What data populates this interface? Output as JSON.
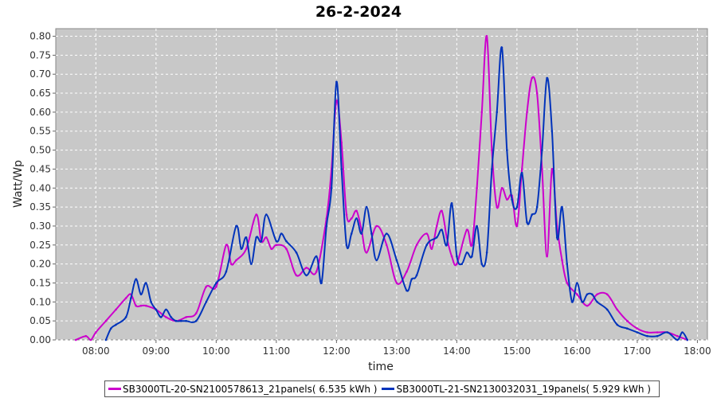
{
  "chart_data": {
    "type": "line",
    "title": "26-2-2024",
    "xlabel": "time",
    "ylabel": "Watt/Wp",
    "xlim": [
      "07:20",
      "18:10"
    ],
    "ylim": [
      0,
      0.82
    ],
    "x_ticks": [
      "08:00",
      "09:00",
      "10:00",
      "11:00",
      "12:00",
      "13:00",
      "14:00",
      "15:00",
      "16:00",
      "17:00",
      "18:00"
    ],
    "y_ticks": [
      "0.00",
      "0.05",
      "0.10",
      "0.15",
      "0.20",
      "0.25",
      "0.30",
      "0.35",
      "0.40",
      "0.45",
      "0.50",
      "0.55",
      "0.60",
      "0.65",
      "0.70",
      "0.75",
      "0.80"
    ],
    "grid": true,
    "legend_position": "bottom",
    "background_color": "#c8c8c8",
    "series": [
      {
        "name": "SB3000TL-20-SN2100578613_21panels( 6.535 kWh )",
        "color": "#cc00cc",
        "x": [
          "07:40",
          "07:50",
          "07:55",
          "08:00",
          "08:10",
          "08:20",
          "08:30",
          "08:35",
          "08:40",
          "08:45",
          "08:50",
          "09:00",
          "09:10",
          "09:20",
          "09:30",
          "09:40",
          "09:50",
          "10:00",
          "10:10",
          "10:15",
          "10:20",
          "10:30",
          "10:40",
          "10:45",
          "10:50",
          "10:55",
          "11:00",
          "11:10",
          "11:20",
          "11:30",
          "11:40",
          "11:50",
          "11:55",
          "12:00",
          "12:05",
          "12:10",
          "12:15",
          "12:20",
          "12:25",
          "12:30",
          "12:40",
          "12:50",
          "13:00",
          "13:10",
          "13:20",
          "13:30",
          "13:35",
          "13:40",
          "13:45",
          "13:50",
          "13:55",
          "14:00",
          "14:10",
          "14:15",
          "14:20",
          "14:25",
          "14:30",
          "14:35",
          "14:40",
          "14:45",
          "14:50",
          "14:55",
          "15:00",
          "15:05",
          "15:10",
          "15:15",
          "15:20",
          "15:25",
          "15:30",
          "15:35",
          "15:40",
          "15:45",
          "15:50",
          "16:00",
          "16:10",
          "16:20",
          "16:30",
          "16:40",
          "16:50",
          "17:00",
          "17:10",
          "17:20",
          "17:30",
          "17:40",
          "17:50"
        ],
        "y": [
          0.0,
          0.01,
          0.0,
          0.02,
          0.05,
          0.08,
          0.11,
          0.12,
          0.09,
          0.09,
          0.09,
          0.08,
          0.06,
          0.05,
          0.06,
          0.07,
          0.14,
          0.14,
          0.25,
          0.2,
          0.21,
          0.24,
          0.33,
          0.26,
          0.27,
          0.24,
          0.25,
          0.24,
          0.17,
          0.19,
          0.18,
          0.32,
          0.45,
          0.63,
          0.52,
          0.33,
          0.32,
          0.34,
          0.29,
          0.23,
          0.3,
          0.25,
          0.15,
          0.18,
          0.25,
          0.28,
          0.24,
          0.3,
          0.34,
          0.27,
          0.22,
          0.2,
          0.29,
          0.25,
          0.4,
          0.6,
          0.8,
          0.5,
          0.35,
          0.4,
          0.37,
          0.38,
          0.3,
          0.45,
          0.6,
          0.69,
          0.65,
          0.45,
          0.22,
          0.45,
          0.3,
          0.21,
          0.15,
          0.12,
          0.09,
          0.12,
          0.12,
          0.08,
          0.05,
          0.03,
          0.02,
          0.02,
          0.02,
          0.01,
          0.0
        ]
      },
      {
        "name": "SB3000TL-21-SN2130032031_19panels( 5.929 kWh )",
        "color": "#0033bb",
        "x": [
          "08:10",
          "08:15",
          "08:20",
          "08:30",
          "08:35",
          "08:40",
          "08:45",
          "08:50",
          "08:55",
          "09:00",
          "09:05",
          "09:10",
          "09:15",
          "09:20",
          "09:25",
          "09:30",
          "09:40",
          "09:50",
          "10:00",
          "10:10",
          "10:20",
          "10:25",
          "10:30",
          "10:35",
          "10:40",
          "10:45",
          "10:50",
          "11:00",
          "11:05",
          "11:10",
          "11:20",
          "11:30",
          "11:40",
          "11:45",
          "11:50",
          "11:55",
          "12:00",
          "12:05",
          "12:10",
          "12:15",
          "12:20",
          "12:25",
          "12:30",
          "12:35",
          "12:40",
          "12:50",
          "13:00",
          "13:10",
          "13:15",
          "13:20",
          "13:30",
          "13:40",
          "13:45",
          "13:50",
          "13:55",
          "14:00",
          "14:05",
          "14:10",
          "14:15",
          "14:20",
          "14:25",
          "14:30",
          "14:35",
          "14:40",
          "14:45",
          "14:50",
          "14:55",
          "15:00",
          "15:05",
          "15:10",
          "15:15",
          "15:20",
          "15:25",
          "15:30",
          "15:35",
          "15:40",
          "15:45",
          "15:50",
          "15:55",
          "16:00",
          "16:05",
          "16:10",
          "16:15",
          "16:20",
          "16:30",
          "16:40",
          "16:50",
          "17:00",
          "17:10",
          "17:20",
          "17:30",
          "17:40",
          "17:45",
          "17:50"
        ],
        "y": [
          0.0,
          0.03,
          0.04,
          0.06,
          0.11,
          0.16,
          0.12,
          0.15,
          0.1,
          0.08,
          0.06,
          0.08,
          0.06,
          0.05,
          0.05,
          0.05,
          0.05,
          0.1,
          0.15,
          0.18,
          0.3,
          0.24,
          0.27,
          0.2,
          0.27,
          0.26,
          0.33,
          0.26,
          0.28,
          0.26,
          0.23,
          0.17,
          0.22,
          0.15,
          0.3,
          0.4,
          0.68,
          0.45,
          0.25,
          0.28,
          0.32,
          0.28,
          0.35,
          0.28,
          0.21,
          0.28,
          0.21,
          0.13,
          0.16,
          0.17,
          0.25,
          0.27,
          0.29,
          0.25,
          0.36,
          0.22,
          0.2,
          0.23,
          0.22,
          0.3,
          0.2,
          0.23,
          0.45,
          0.6,
          0.77,
          0.5,
          0.37,
          0.35,
          0.44,
          0.31,
          0.33,
          0.35,
          0.5,
          0.69,
          0.55,
          0.27,
          0.35,
          0.2,
          0.1,
          0.15,
          0.1,
          0.12,
          0.12,
          0.1,
          0.08,
          0.04,
          0.03,
          0.02,
          0.01,
          0.01,
          0.02,
          0.0,
          0.02,
          0.0
        ]
      }
    ]
  }
}
